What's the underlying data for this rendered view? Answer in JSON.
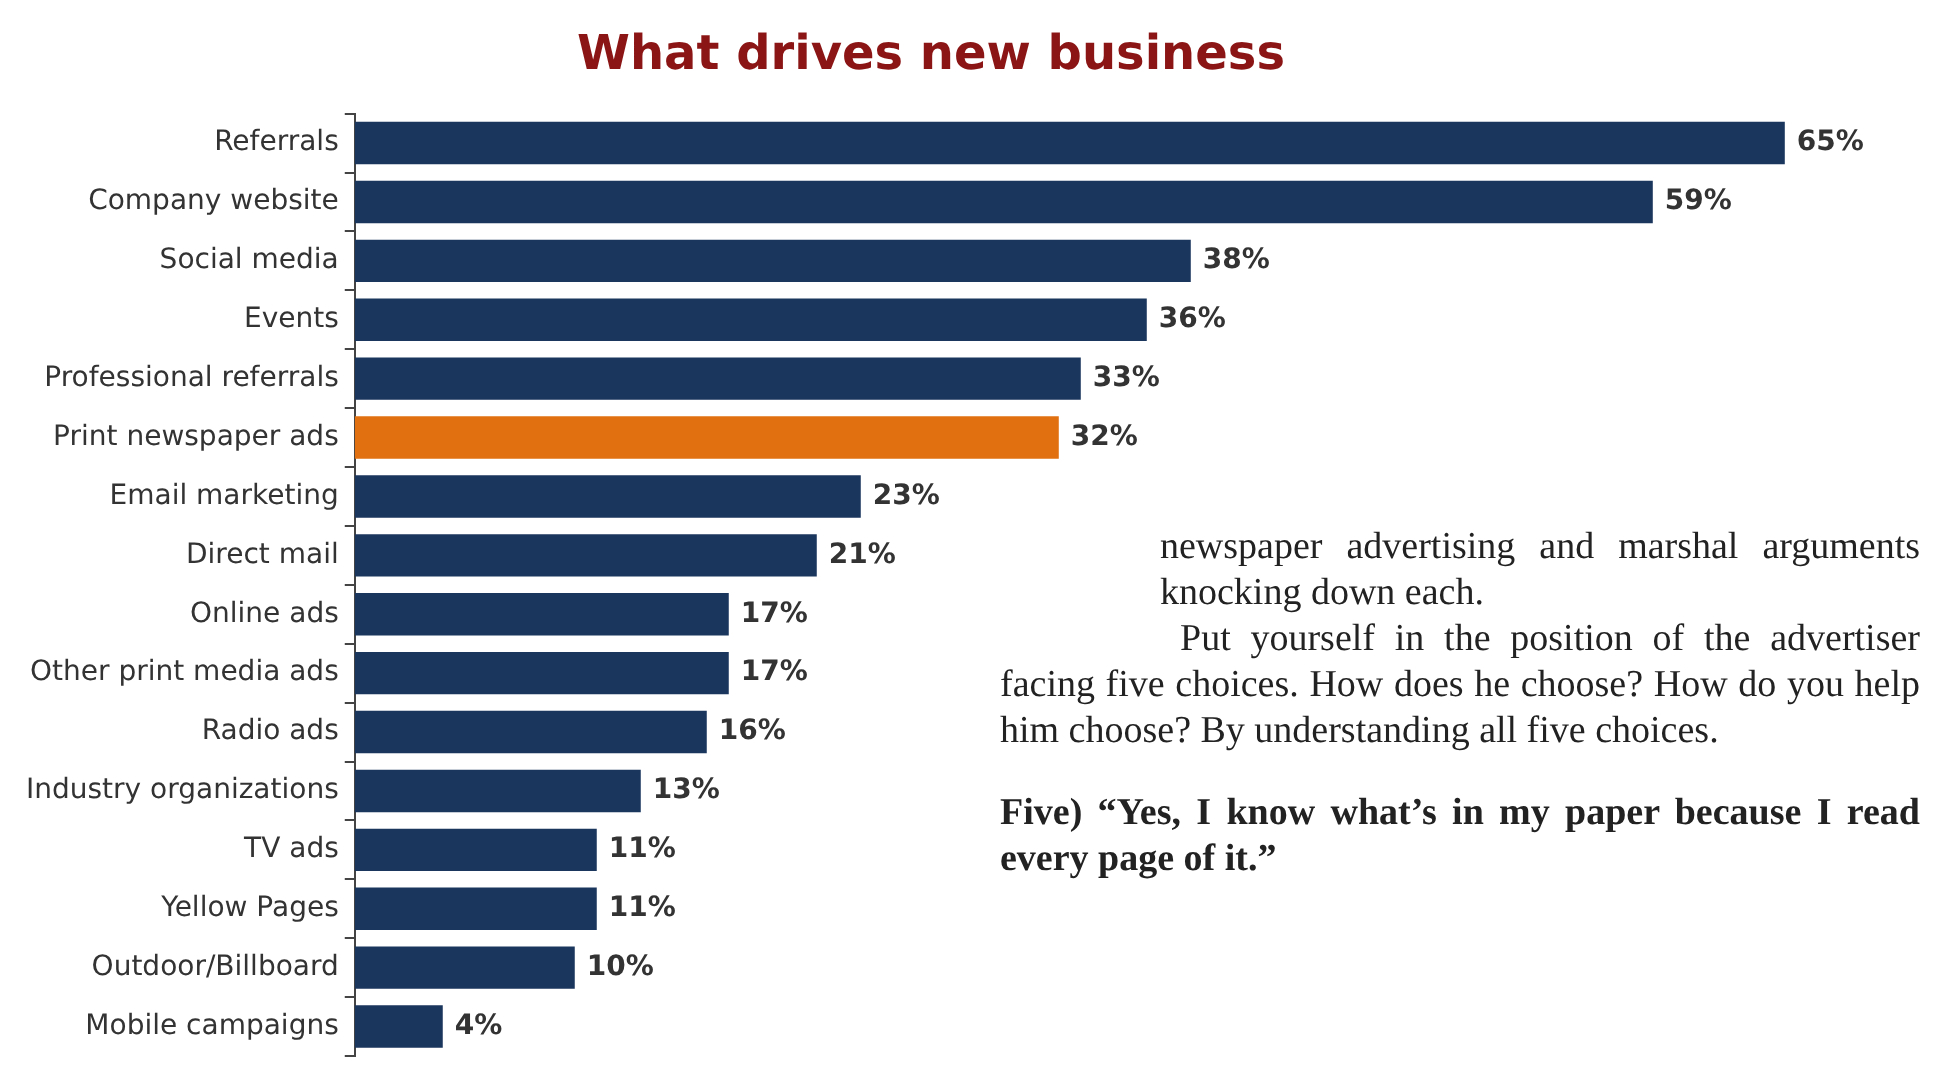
{
  "chart_data": {
    "type": "bar",
    "orientation": "horizontal",
    "title": "What drives new business",
    "categories": [
      "Referrals",
      "Company website",
      "Social media",
      "Events",
      "Professional referrals",
      "Print newspaper ads",
      "Email marketing",
      "Direct mail",
      "Online ads",
      "Other print media ads",
      "Radio ads",
      "Industry organizations",
      "TV ads",
      "Yellow Pages",
      "Outdoor/Billboard",
      "Mobile campaigns"
    ],
    "values": [
      65,
      59,
      38,
      36,
      33,
      32,
      23,
      21,
      17,
      17,
      16,
      13,
      11,
      11,
      10,
      4
    ],
    "value_labels": [
      "65%",
      "59%",
      "38%",
      "36%",
      "33%",
      "32%",
      "23%",
      "21%",
      "17%",
      "17%",
      "16%",
      "13%",
      "11%",
      "11%",
      "10%",
      "4%"
    ],
    "colors": [
      "#1b365d",
      "#1b365d",
      "#1b365d",
      "#1b365d",
      "#1b365d",
      "#e07010",
      "#1b365d",
      "#1b365d",
      "#1b365d",
      "#1b365d",
      "#1b365d",
      "#1b365d",
      "#1b365d",
      "#1b365d",
      "#1b365d",
      "#1b365d"
    ],
    "relative": false,
    "legend": false,
    "annotations": [
      "newspaper advertising and marshal arguments knocking down each.",
      "Put yourself in the position of the advertiser facing five choices. How does he choose? How do you help him choose? By understanding all five choices.",
      "Five) “Yes, I know what’s in my paper because I read every page of it.”"
    ]
  }
}
